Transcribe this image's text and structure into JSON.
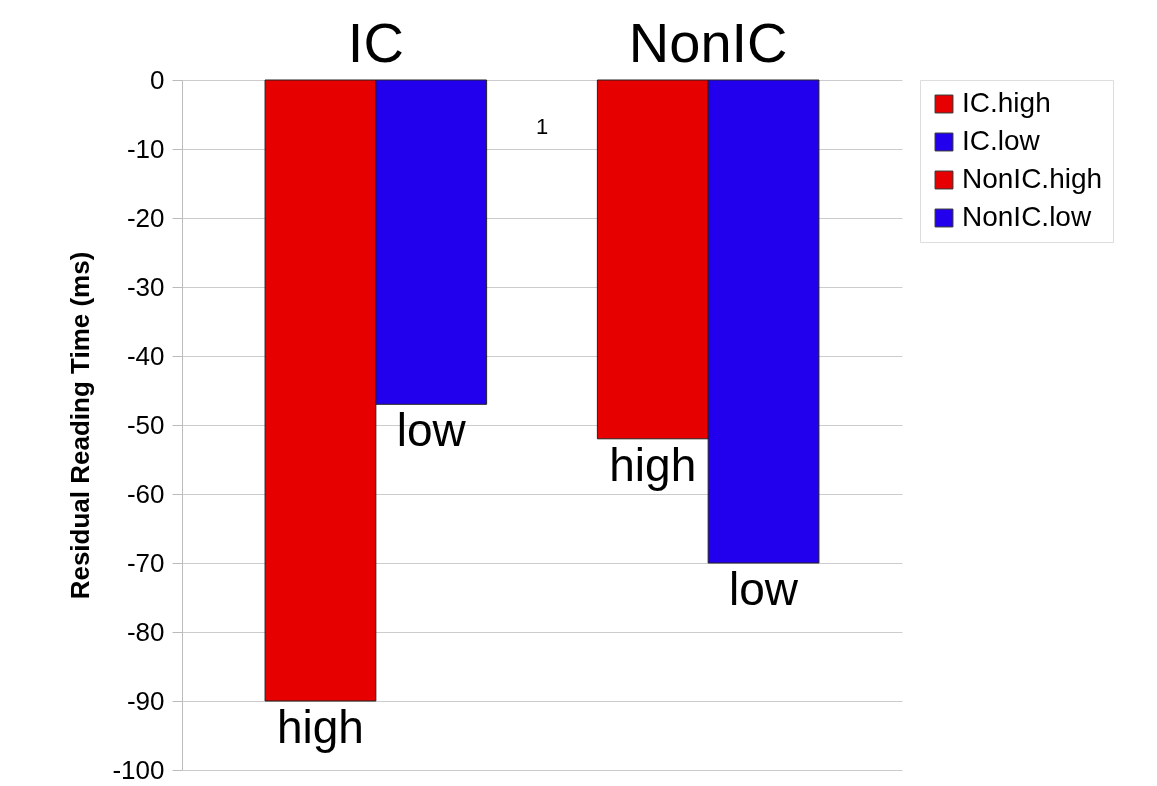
{
  "chart_data": {
    "type": "bar",
    "ylabel": "Residual Reading Time (ms)",
    "categories": [
      "1"
    ],
    "series": [
      {
        "name": "IC.high",
        "color": "#e60000",
        "values": [
          -90
        ],
        "value_labels": [
          "high"
        ]
      },
      {
        "name": "IC.low",
        "color": "#2200ee",
        "values": [
          -47
        ],
        "value_labels": [
          "low"
        ]
      },
      {
        "name": "NonIC.high",
        "color": "#e60000",
        "values": [
          -52
        ],
        "value_labels": [
          "high"
        ]
      },
      {
        "name": "NonIC.low",
        "color": "#2200ee",
        "values": [
          -70
        ],
        "value_labels": [
          "low"
        ]
      }
    ],
    "annotations": [
      "IC",
      "NonIC"
    ],
    "ylim": [
      -100,
      0
    ],
    "yticks": [
      0,
      -10,
      -20,
      -30,
      -40,
      -50,
      -60,
      -70,
      -80,
      -90,
      -100
    ],
    "grid": "y",
    "legend": "right"
  }
}
